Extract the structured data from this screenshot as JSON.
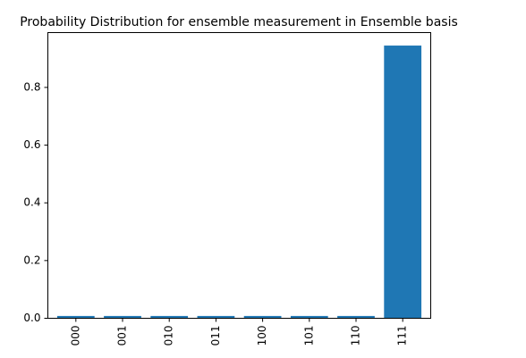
{
  "chart_data": {
    "type": "bar",
    "title": "Probability Distribution for ensemble measurement in Ensemble basis",
    "xlabel": "",
    "ylabel": "",
    "categories": [
      "000",
      "001",
      "010",
      "011",
      "100",
      "101",
      "110",
      "111"
    ],
    "values": [
      0.008,
      0.008,
      0.008,
      0.008,
      0.008,
      0.008,
      0.008,
      0.945
    ],
    "ylim": [
      0,
      0.99
    ],
    "yticks": [
      0.0,
      0.2,
      0.4,
      0.6,
      0.8
    ],
    "ytick_labels": [
      "0.0",
      "0.2",
      "0.4",
      "0.6",
      "0.8"
    ],
    "bar_color": "#1f77b4",
    "grid": false,
    "legend": "none"
  }
}
